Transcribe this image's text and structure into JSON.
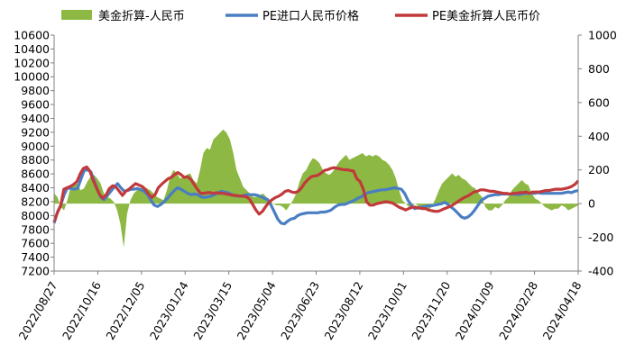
{
  "chart_data": {
    "type": "line",
    "title": "",
    "legend": [
      {
        "name": "美金折算-人民币",
        "type": "area",
        "color": "#8db843",
        "axis": "right"
      },
      {
        "name": "PE进口人民币价格",
        "type": "line",
        "color": "#4a7ec3",
        "axis": "left"
      },
      {
        "name": "PE美金折算人民币价",
        "type": "line",
        "color": "#c2393b",
        "axis": "left"
      }
    ],
    "x_tick_labels": [
      "2022/08/27",
      "2022/10/16",
      "2022/12/05",
      "2023/01/24",
      "2023/03/15",
      "2023/05/04",
      "2023/06/23",
      "2023/08/12",
      "2023/10/01",
      "2023/11/20",
      "2024/01/09",
      "2024/02/28",
      "2024/04/18"
    ],
    "y_left": {
      "min": 7200,
      "max": 10600,
      "step": 200,
      "tick_labels": [
        "7200",
        "7400",
        "7600",
        "7800",
        "8000",
        "8200",
        "8400",
        "8600",
        "8800",
        "9000",
        "9200",
        "9400",
        "9600",
        "9800",
        "10000",
        "10200",
        "10400",
        "10600"
      ]
    },
    "y_right": {
      "min": -400,
      "max": 1000,
      "step": 200,
      "tick_labels": [
        "-400",
        "-200",
        "0",
        "200",
        "400",
        "600",
        "800",
        "1000"
      ]
    },
    "series": [
      {
        "name": "美金折算-人民币",
        "axis": "right",
        "color": "#8db843",
        "values": [
          60,
          40,
          -20,
          -40,
          20,
          100,
          110,
          120,
          80,
          90,
          130,
          160,
          170,
          150,
          120,
          60,
          40,
          30,
          10,
          -40,
          -120,
          -260,
          -60,
          20,
          60,
          80,
          90,
          100,
          90,
          80,
          60,
          40,
          30,
          20,
          80,
          160,
          200,
          180,
          150,
          160,
          170,
          180,
          140,
          120,
          200,
          300,
          330,
          320,
          380,
          400,
          420,
          440,
          420,
          380,
          300,
          200,
          150,
          100,
          80,
          60,
          40,
          40,
          50,
          60,
          40,
          20,
          0,
          -10,
          -10,
          -20,
          -40,
          -10,
          20,
          60,
          130,
          180,
          200,
          240,
          270,
          260,
          240,
          200,
          180,
          170,
          190,
          220,
          250,
          270,
          290,
          260,
          270,
          280,
          290,
          300,
          280,
          290,
          280,
          290,
          280,
          260,
          250,
          230,
          200,
          150,
          80,
          20,
          0,
          -20,
          -10,
          0,
          -20,
          -30,
          -30,
          -40,
          -10,
          30,
          80,
          120,
          140,
          160,
          180,
          160,
          170,
          150,
          140,
          120,
          100,
          90,
          60,
          40,
          -20,
          -40,
          -40,
          -20,
          -30,
          -10,
          20,
          40,
          80,
          100,
          120,
          140,
          120,
          110,
          60,
          30,
          20,
          0,
          -20,
          -30,
          -40,
          -30,
          -30,
          -10,
          -20,
          -40,
          -30,
          -20,
          -10
        ]
      },
      {
        "name": "PE进口人民币价格",
        "axis": "left",
        "color": "#4a7ec3",
        "values": [
          7890,
          8050,
          8150,
          8300,
          8400,
          8390,
          8380,
          8390,
          8520,
          8650,
          8660,
          8630,
          8500,
          8370,
          8260,
          8230,
          8290,
          8350,
          8410,
          8460,
          8400,
          8350,
          8360,
          8380,
          8380,
          8390,
          8370,
          8350,
          8300,
          8220,
          8150,
          8130,
          8160,
          8200,
          8250,
          8310,
          8360,
          8400,
          8380,
          8350,
          8320,
          8300,
          8310,
          8300,
          8270,
          8260,
          8270,
          8280,
          8300,
          8320,
          8350,
          8340,
          8330,
          8310,
          8290,
          8280,
          8280,
          8290,
          8300,
          8300,
          8300,
          8290,
          8270,
          8250,
          8230,
          8150,
          8050,
          7950,
          7890,
          7880,
          7920,
          7950,
          7960,
          8000,
          8020,
          8030,
          8040,
          8040,
          8040,
          8040,
          8050,
          8050,
          8060,
          8080,
          8120,
          8150,
          8160,
          8160,
          8180,
          8200,
          8220,
          8250,
          8270,
          8300,
          8330,
          8340,
          8350,
          8360,
          8370,
          8370,
          8380,
          8390,
          8400,
          8390,
          8380,
          8320,
          8220,
          8150,
          8100,
          8110,
          8120,
          8130,
          8140,
          8140,
          8150,
          8160,
          8170,
          8190,
          8160,
          8120,
          8080,
          8030,
          7980,
          7960,
          7980,
          8020,
          8080,
          8150,
          8220,
          8250,
          8280,
          8290,
          8300,
          8300,
          8310,
          8310,
          8310,
          8310,
          8310,
          8300,
          8310,
          8320,
          8320,
          8320,
          8320,
          8330,
          8320,
          8320,
          8320,
          8320,
          8320,
          8320,
          8320,
          8330,
          8340,
          8330,
          8350,
          8360
        ]
      },
      {
        "name": "PE美金折算人民币价",
        "axis": "left",
        "color": "#c2393b",
        "values": [
          7910,
          8040,
          8140,
          8380,
          8400,
          8420,
          8450,
          8490,
          8600,
          8680,
          8700,
          8640,
          8510,
          8400,
          8300,
          8250,
          8300,
          8390,
          8430,
          8410,
          8350,
          8290,
          8350,
          8380,
          8420,
          8460,
          8440,
          8420,
          8380,
          8310,
          8260,
          8300,
          8400,
          8450,
          8490,
          8530,
          8550,
          8590,
          8620,
          8590,
          8550,
          8560,
          8520,
          8450,
          8380,
          8320,
          8320,
          8330,
          8330,
          8320,
          8330,
          8320,
          8320,
          8310,
          8300,
          8290,
          8290,
          8280,
          8280,
          8270,
          8240,
          8160,
          8080,
          8020,
          8060,
          8130,
          8190,
          8230,
          8260,
          8280,
          8310,
          8350,
          8360,
          8340,
          8330,
          8350,
          8400,
          8470,
          8520,
          8560,
          8570,
          8580,
          8610,
          8650,
          8660,
          8680,
          8690,
          8680,
          8670,
          8660,
          8660,
          8650,
          8640,
          8530,
          8490,
          8380,
          8200,
          8150,
          8150,
          8170,
          8180,
          8190,
          8200,
          8190,
          8180,
          8150,
          8120,
          8100,
          8080,
          8100,
          8120,
          8120,
          8110,
          8100,
          8100,
          8080,
          8070,
          8060,
          8060,
          8080,
          8100,
          8120,
          8140,
          8170,
          8200,
          8230,
          8260,
          8280,
          8310,
          8340,
          8350,
          8370,
          8370,
          8360,
          8350,
          8350,
          8340,
          8330,
          8320,
          8320,
          8310,
          8320,
          8320,
          8330,
          8330,
          8340,
          8320,
          8340,
          8340,
          8340,
          8350,
          8360,
          8360,
          8370,
          8380,
          8380,
          8380,
          8390,
          8400,
          8420,
          8450,
          8500
        ]
      }
    ]
  }
}
